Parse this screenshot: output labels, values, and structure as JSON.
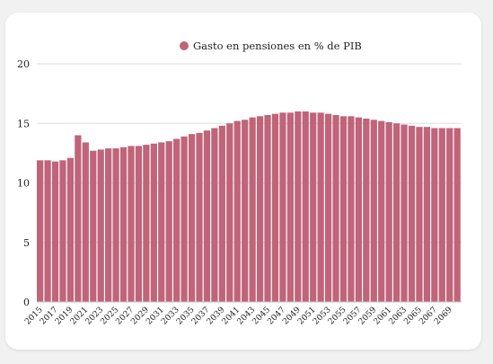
{
  "chart_data": {
    "type": "bar",
    "legend": {
      "label": "Gasto en pensiones en % de PIB",
      "placement": "top-center"
    },
    "color": "#c0647a",
    "ylim": [
      0,
      20
    ],
    "y_ticks": [
      0,
      5,
      10,
      15,
      20
    ],
    "grid": true,
    "x_tick_labels": [
      "2015",
      "2017",
      "2019",
      "2021",
      "2023",
      "2025",
      "2027",
      "2029",
      "2031",
      "2033",
      "2035",
      "2037",
      "2039",
      "2041",
      "2043",
      "2045",
      "2047",
      "2049",
      "2051",
      "2053",
      "2055",
      "2057",
      "2059",
      "2061",
      "2063",
      "2065",
      "2067",
      "2069"
    ],
    "categories": [
      "2015",
      "2016",
      "2017",
      "2018",
      "2019",
      "2020",
      "2021",
      "2022",
      "2023",
      "2024",
      "2025",
      "2026",
      "2027",
      "2028",
      "2029",
      "2030",
      "2031",
      "2032",
      "2033",
      "2034",
      "2035",
      "2036",
      "2037",
      "2038",
      "2039",
      "2040",
      "2041",
      "2042",
      "2043",
      "2044",
      "2045",
      "2046",
      "2047",
      "2048",
      "2049",
      "2050",
      "2051",
      "2052",
      "2053",
      "2054",
      "2055",
      "2056",
      "2057",
      "2058",
      "2059",
      "2060",
      "2061",
      "2062",
      "2063",
      "2064",
      "2065",
      "2066",
      "2067",
      "2068",
      "2069",
      "2070"
    ],
    "values": [
      11.9,
      11.9,
      11.8,
      11.9,
      12.1,
      14.0,
      13.4,
      12.7,
      12.8,
      12.9,
      12.9,
      13.0,
      13.1,
      13.1,
      13.2,
      13.3,
      13.4,
      13.5,
      13.7,
      13.9,
      14.1,
      14.2,
      14.4,
      14.6,
      14.8,
      15.0,
      15.2,
      15.3,
      15.5,
      15.6,
      15.7,
      15.8,
      15.9,
      15.9,
      16.0,
      16.0,
      15.9,
      15.9,
      15.8,
      15.7,
      15.6,
      15.6,
      15.5,
      15.4,
      15.3,
      15.2,
      15.1,
      15.0,
      14.9,
      14.8,
      14.7,
      14.7,
      14.6,
      14.6,
      14.6,
      14.6
    ]
  }
}
